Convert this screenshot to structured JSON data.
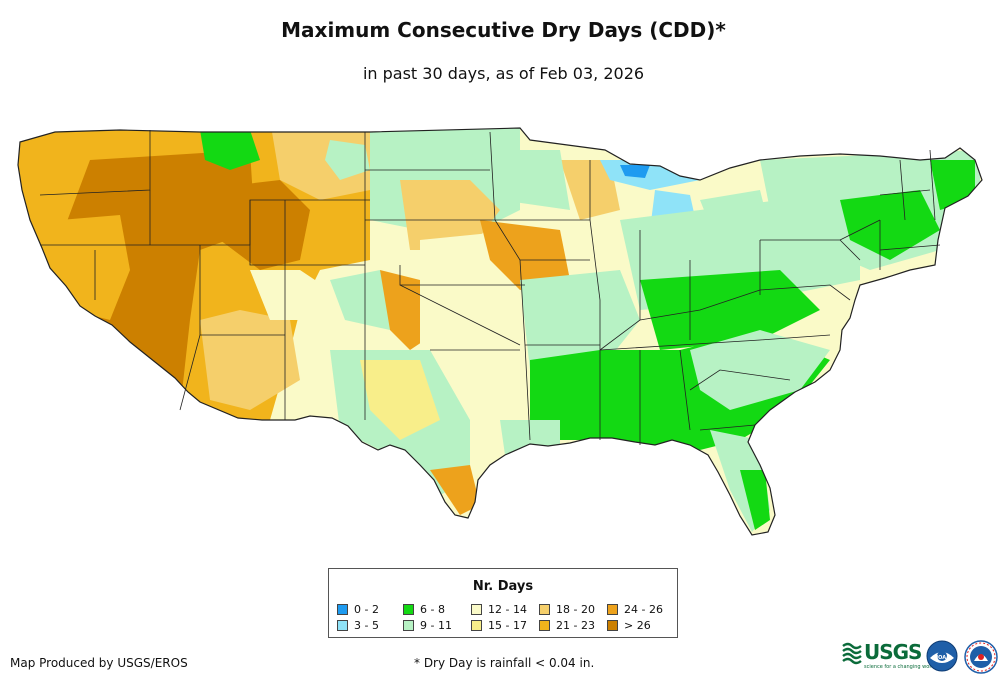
{
  "title": "Maximum Consecutive Dry Days (CDD)*",
  "subtitle": "in past 30 days, as of Feb 03, 2026",
  "legend": {
    "title": "Nr. Days",
    "items": [
      {
        "label": "0 - 2",
        "color": "#1e9bf0"
      },
      {
        "label": "3 - 5",
        "color": "#8fe3f8"
      },
      {
        "label": "6 - 8",
        "color": "#13d913"
      },
      {
        "label": "9 - 11",
        "color": "#b7f2c4"
      },
      {
        "label": "12 - 14",
        "color": "#fafac8"
      },
      {
        "label": "15 - 17",
        "color": "#f8ee8a"
      },
      {
        "label": "18 - 20",
        "color": "#f5cf6b"
      },
      {
        "label": "21 - 23",
        "color": "#f1b41c"
      },
      {
        "label": "24 - 26",
        "color": "#eda21c"
      },
      {
        "label": "> 26",
        "color": "#cc8000"
      }
    ]
  },
  "credit": "Map Produced by USGS/EROS",
  "footnote": "* Dry Day is rainfall < 0.04 in.",
  "logos": {
    "usgs": "USGS",
    "usgs_tagline": "science for a changing world",
    "noaa": "NOAA"
  }
}
